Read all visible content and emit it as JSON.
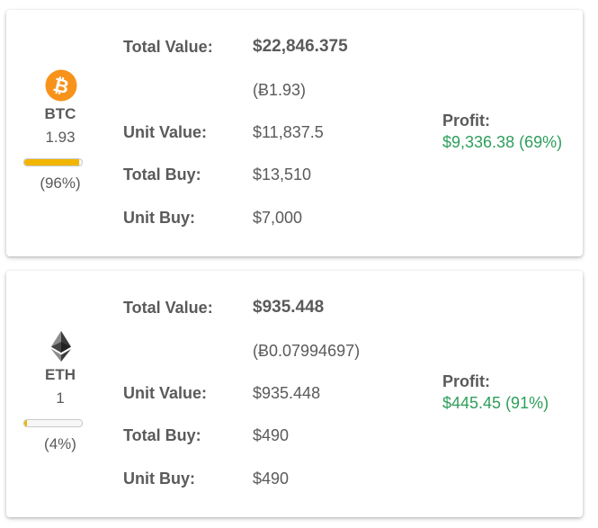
{
  "colors": {
    "profit": "#2e9e5b",
    "bar_fill": "#f2b600",
    "btc_orange": "#f7931a",
    "eth_dark": "#3c3c3d"
  },
  "holdings": [
    {
      "symbol": "BTC",
      "icon": "bitcoin-icon",
      "amount": "1.93",
      "share_fraction": 0.96,
      "share_text": "(96%)",
      "total_value_label": "Total Value:",
      "total_value": "$22,846.375",
      "btc_equivalent": "(Ƀ1.93)",
      "unit_value_label": "Unit Value:",
      "unit_value": "$11,837.5",
      "total_buy_label": "Total Buy:",
      "total_buy": "$13,510",
      "unit_buy_label": "Unit Buy:",
      "unit_buy": "$7,000",
      "profit_label": "Profit:",
      "profit": "$9,336.38 (69%)"
    },
    {
      "symbol": "ETH",
      "icon": "ethereum-icon",
      "amount": "1",
      "share_fraction": 0.04,
      "share_text": "(4%)",
      "total_value_label": "Total Value:",
      "total_value": "$935.448",
      "btc_equivalent": "(Ƀ0.07994697)",
      "unit_value_label": "Unit Value:",
      "unit_value": "$935.448",
      "total_buy_label": "Total Buy:",
      "total_buy": "$490",
      "unit_buy_label": "Unit Buy:",
      "unit_buy": "$490",
      "profit_label": "Profit:",
      "profit": "$445.45 (91%)"
    }
  ]
}
